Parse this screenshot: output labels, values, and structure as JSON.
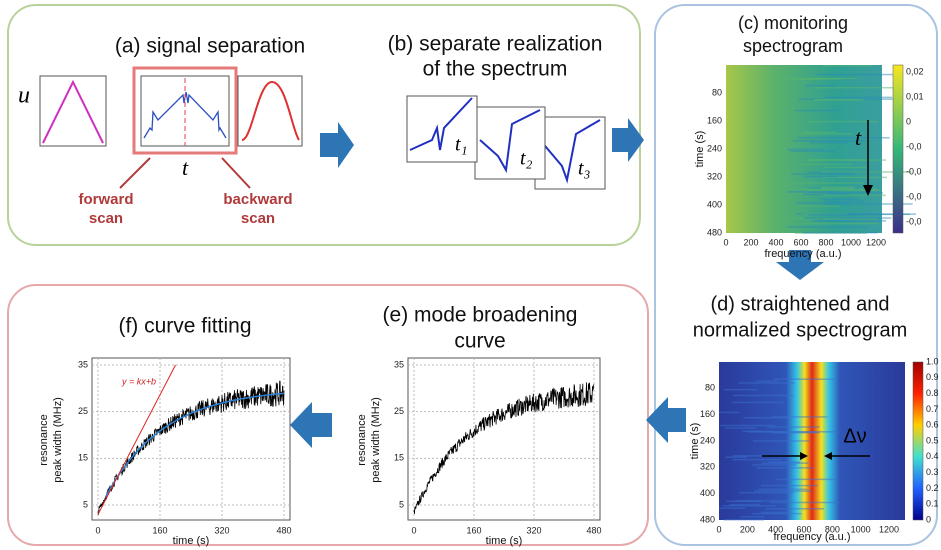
{
  "panel_a": {
    "title": "(a) signal separation",
    "u_label": "u",
    "t_label": "t",
    "forward": [
      "forward",
      "scan"
    ],
    "backward": [
      "backward",
      "scan"
    ]
  },
  "panel_b": {
    "title": [
      "(b) separate realization",
      "of the spectrum"
    ],
    "labels": [
      "t₁",
      "t₂",
      "t₃"
    ]
  },
  "panel_c": {
    "title": [
      "(c) monitoring",
      "spectrogram"
    ],
    "y_label": "time (s)",
    "x_label": "frequency (a.u.)",
    "yticks": [
      "80",
      "160",
      "240",
      "320",
      "400",
      "480"
    ],
    "xticks": [
      "0",
      "200",
      "400",
      "600",
      "800",
      "1000",
      "1200"
    ],
    "colorbar": [
      "0,02",
      "0,01",
      "0",
      "-0,0",
      "-0,0",
      "-0,0",
      "-0,0"
    ],
    "arrow_label": "t"
  },
  "panel_d": {
    "title": [
      "(d) straightened and",
      "normalized spectrogram"
    ],
    "y_label": "time (s)",
    "x_label": "frequency (a.u.)",
    "yticks": [
      "80",
      "160",
      "240",
      "320",
      "400",
      "480"
    ],
    "xticks": [
      "0",
      "200",
      "400",
      "600",
      "800",
      "1000",
      "1200"
    ],
    "colorbar": [
      "1.0",
      "0.9",
      "0.8",
      "0.7",
      "0.6",
      "0.5",
      "0.4",
      "0.3",
      "0.2",
      "0.1",
      "0"
    ],
    "delta_label": "Δν"
  },
  "panel_e": {
    "title": [
      "(e) mode broadening",
      "curve"
    ],
    "y_label": [
      "resonance",
      "peak width (MHz)"
    ],
    "x_label": "time (s)",
    "yticks": [
      "35",
      "25",
      "15",
      "5"
    ],
    "xticks": [
      "0",
      "160",
      "320",
      "480"
    ]
  },
  "panel_f": {
    "title": "(f) curve fitting",
    "y_label": [
      "resonance",
      "peak width (MHz)"
    ],
    "x_label": "time (s)",
    "yticks": [
      "35",
      "25",
      "15",
      "5"
    ],
    "xticks": [
      "0",
      "160",
      "320",
      "480"
    ],
    "fit_label": "y = kx+b"
  }
}
